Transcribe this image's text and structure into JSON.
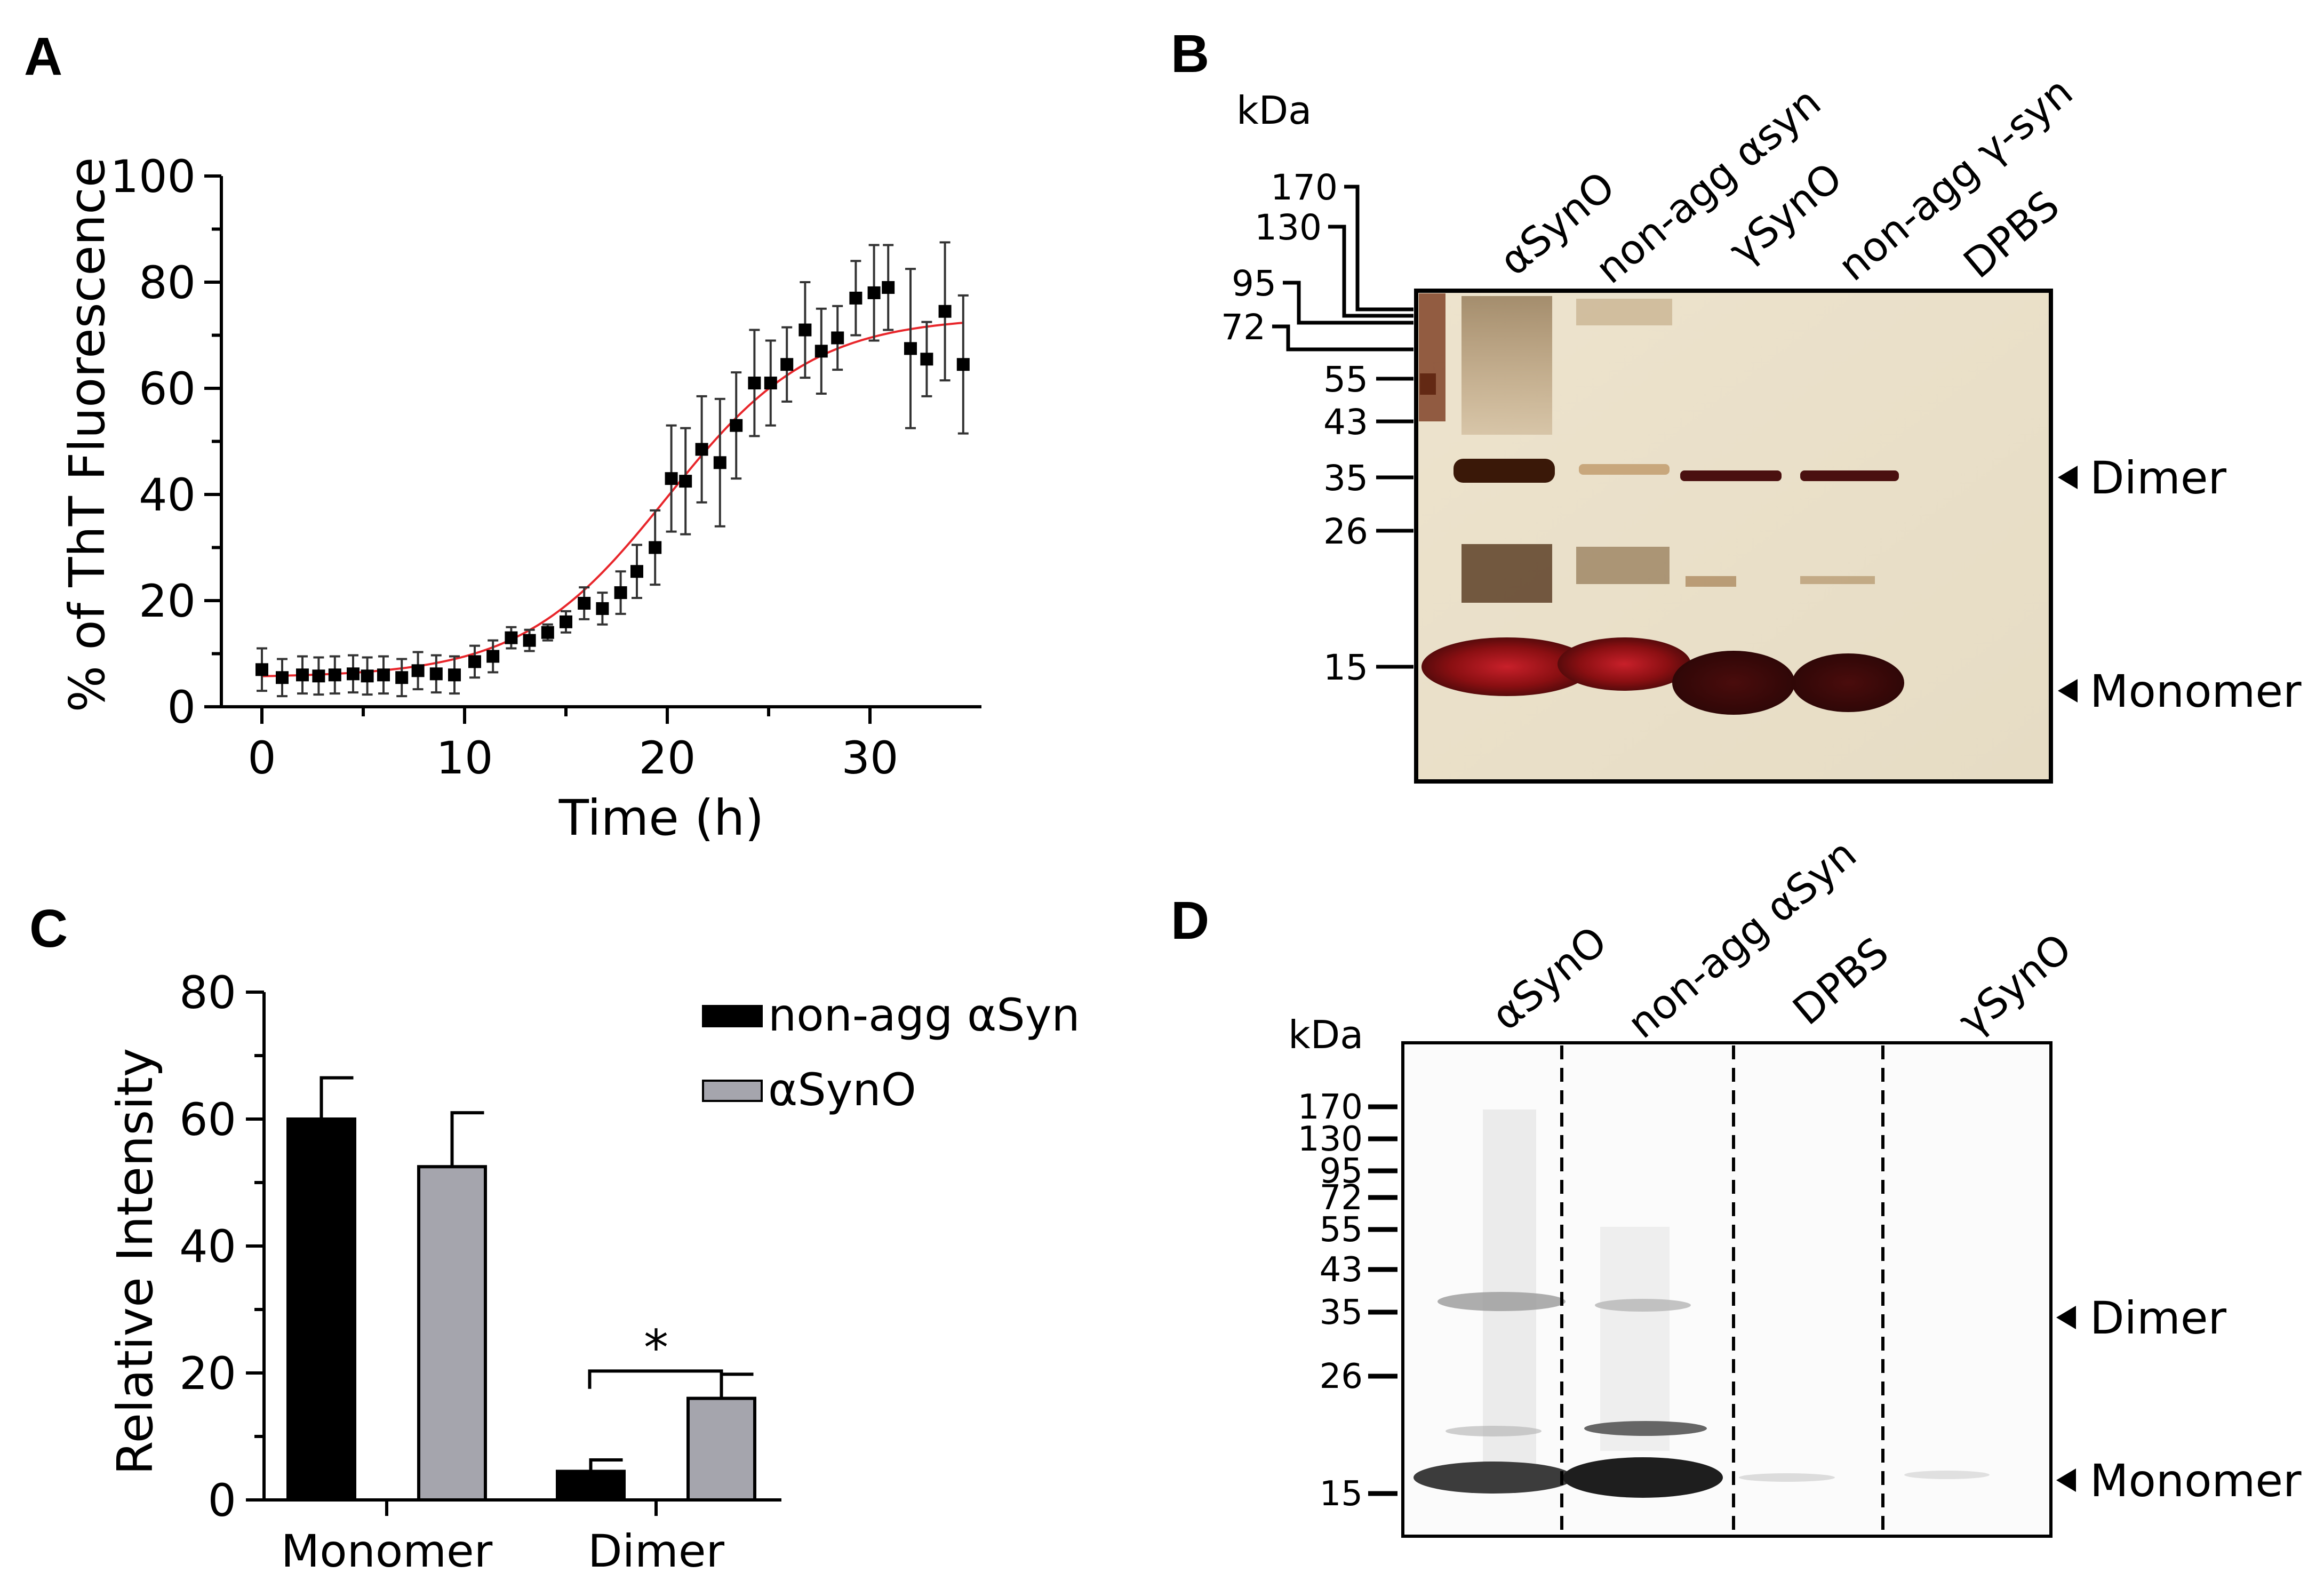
{
  "panels": {
    "a": "A",
    "b": "B",
    "c": "C",
    "d": "D"
  },
  "chart_data": [
    {
      "type": "scatter",
      "panel": "A",
      "title": "",
      "xlabel": "Time (h)",
      "ylabel": "% of ThT Fluorescence",
      "xlim": [
        -2,
        35.5
      ],
      "ylim": [
        0,
        100
      ],
      "x_ticks": [
        0,
        10,
        20,
        30
      ],
      "y_ticks": [
        0,
        20,
        40,
        60,
        80,
        100
      ],
      "fit_color": "#e8262b",
      "fit": {
        "bottom": 5.5,
        "top": 73.5,
        "t50": 20,
        "slope": 3.6
      },
      "points": [
        {
          "x": 0,
          "y": 7,
          "err": 4
        },
        {
          "x": 1,
          "y": 5.5,
          "err": 3.5
        },
        {
          "x": 2,
          "y": 6,
          "err": 3.5
        },
        {
          "x": 2.8,
          "y": 5.8,
          "err": 3.5
        },
        {
          "x": 3.6,
          "y": 6,
          "err": 3.5
        },
        {
          "x": 4.5,
          "y": 6.2,
          "err": 3.5
        },
        {
          "x": 5.2,
          "y": 5.8,
          "err": 3.5
        },
        {
          "x": 6,
          "y": 6,
          "err": 3.5
        },
        {
          "x": 6.9,
          "y": 5.5,
          "err": 3.5
        },
        {
          "x": 7.7,
          "y": 6.8,
          "err": 3.5
        },
        {
          "x": 8.6,
          "y": 6.2,
          "err": 3.5
        },
        {
          "x": 9.5,
          "y": 6,
          "err": 3.5
        },
        {
          "x": 10.5,
          "y": 8.5,
          "err": 3
        },
        {
          "x": 11.4,
          "y": 9.5,
          "err": 3
        },
        {
          "x": 12.3,
          "y": 13,
          "err": 2
        },
        {
          "x": 13.2,
          "y": 12.5,
          "err": 2
        },
        {
          "x": 14.1,
          "y": 14,
          "err": 1.5
        },
        {
          "x": 15,
          "y": 16,
          "err": 2
        },
        {
          "x": 15.9,
          "y": 19.5,
          "err": 3
        },
        {
          "x": 16.8,
          "y": 18.5,
          "err": 3
        },
        {
          "x": 17.7,
          "y": 21.5,
          "err": 4
        },
        {
          "x": 18.5,
          "y": 25.5,
          "err": 5
        },
        {
          "x": 19.4,
          "y": 30,
          "err": 7
        },
        {
          "x": 20.2,
          "y": 43,
          "err": 10
        },
        {
          "x": 20.9,
          "y": 42.5,
          "err": 10
        },
        {
          "x": 21.7,
          "y": 48.5,
          "err": 10
        },
        {
          "x": 22.6,
          "y": 46,
          "err": 12
        },
        {
          "x": 23.4,
          "y": 53,
          "err": 10
        },
        {
          "x": 24.3,
          "y": 61,
          "err": 10
        },
        {
          "x": 25.1,
          "y": 61,
          "err": 8
        },
        {
          "x": 25.9,
          "y": 64.5,
          "err": 7
        },
        {
          "x": 26.8,
          "y": 71,
          "err": 9
        },
        {
          "x": 27.6,
          "y": 67,
          "err": 8
        },
        {
          "x": 28.4,
          "y": 69.5,
          "err": 6
        },
        {
          "x": 29.3,
          "y": 77,
          "err": 7
        },
        {
          "x": 30.2,
          "y": 78,
          "err": 9
        },
        {
          "x": 30.9,
          "y": 79,
          "err": 8
        },
        {
          "x": 32,
          "y": 67.5,
          "err": 15
        },
        {
          "x": 32.8,
          "y": 65.5,
          "err": 7
        },
        {
          "x": 33.7,
          "y": 74.5,
          "err": 13
        },
        {
          "x": 34.6,
          "y": 64.5,
          "err": 13
        }
      ]
    },
    {
      "type": "bar",
      "panel": "C",
      "title": "",
      "xlabel": "",
      "ylabel": "Relative Intensity",
      "ylim": [
        0,
        80
      ],
      "y_ticks": [
        0,
        20,
        40,
        60,
        80
      ],
      "categories": [
        "Monomer",
        "Dimer"
      ],
      "series": [
        {
          "name": "non-agg αSyn",
          "color": "#000000",
          "values": [
            60,
            4.5
          ],
          "errors": [
            6.5,
            1.8
          ]
        },
        {
          "name": "αSynO",
          "color": "#a5a5ad",
          "values": [
            52.5,
            16
          ],
          "errors": [
            8.5,
            3.8
          ]
        }
      ],
      "annotations": [
        {
          "text": "*",
          "between": "Dimer"
        }
      ]
    }
  ],
  "blot_b": {
    "unit": "kDa",
    "lanes": [
      "αSynO",
      "non-agg αsyn",
      "γSynO",
      "non-agg γ-syn",
      "DPBS"
    ],
    "markers": [
      "170",
      "130",
      "95",
      "72",
      "55",
      "43",
      "35",
      "26",
      "15"
    ],
    "bands": [
      "Dimer",
      "Monomer"
    ]
  },
  "blot_d": {
    "unit": "kDa",
    "lanes": [
      "αSynO",
      "non-agg αSyn",
      "DPBS",
      "γSynO"
    ],
    "markers": [
      "170",
      "130",
      "95",
      "72",
      "55",
      "43",
      "35",
      "26",
      "15"
    ],
    "bands": [
      "Dimer",
      "Monomer"
    ]
  }
}
